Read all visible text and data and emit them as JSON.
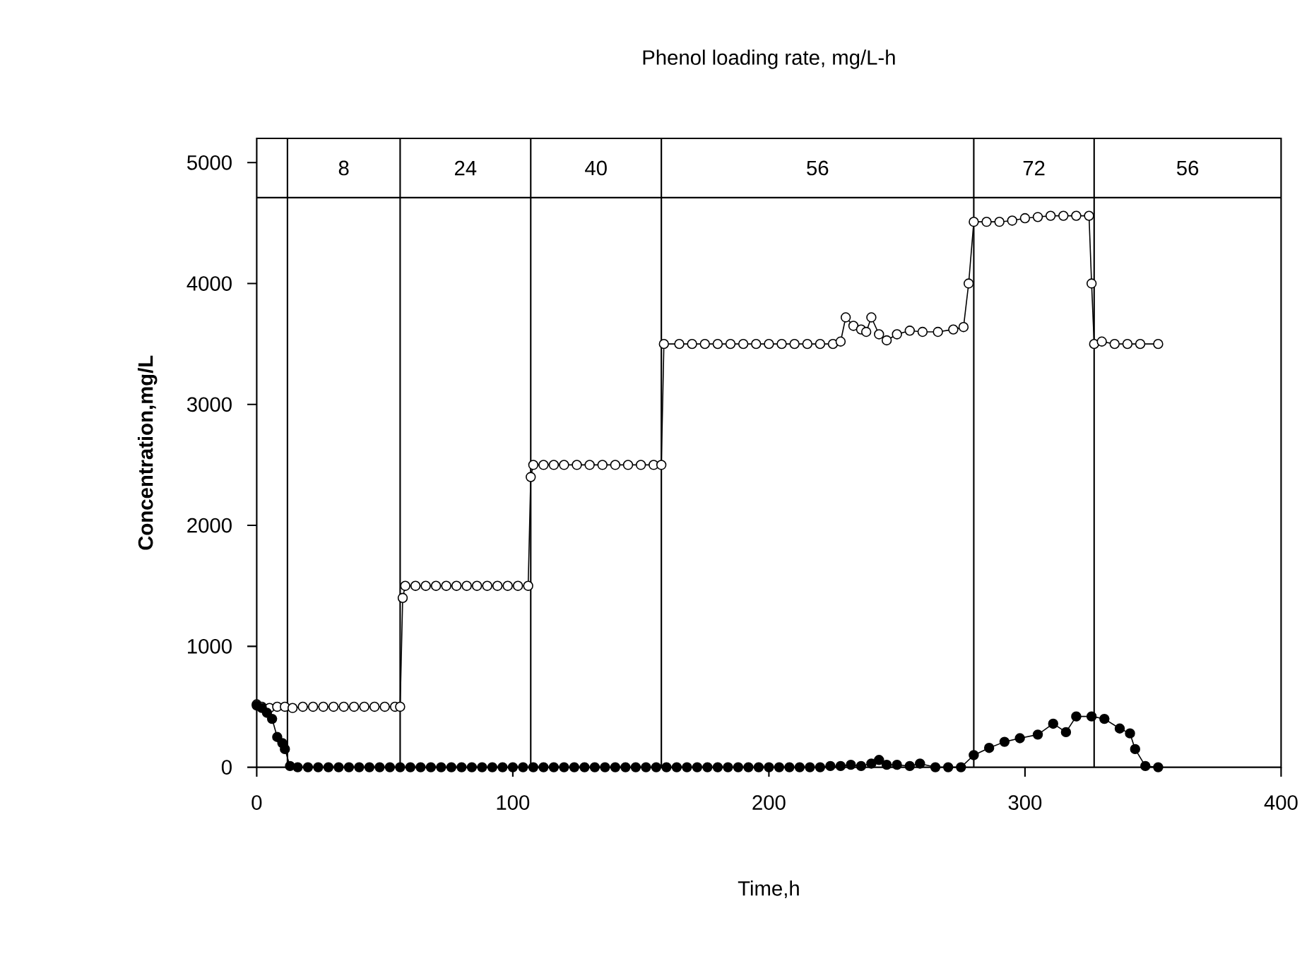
{
  "chart_data": {
    "type": "line",
    "title": "Phenol loading rate, mg/L-h",
    "xlabel": "Time,h",
    "ylabel": "Concentration,mg/L",
    "xlim": [
      0,
      400
    ],
    "xticks": [
      0,
      100,
      200,
      300,
      400
    ],
    "ylim": [
      0,
      5200
    ],
    "yticks": [
      0,
      1000,
      2000,
      3000,
      4000,
      5000
    ],
    "marker": "circle",
    "series": [
      {
        "color": "#000000",
        "x": [
          0,
          2,
          5,
          8,
          11,
          14,
          18,
          22,
          26,
          30,
          34,
          38,
          42,
          46,
          50,
          54,
          56,
          57,
          58,
          62,
          66,
          70,
          74,
          78,
          82,
          86,
          90,
          94,
          98,
          102,
          106,
          107,
          108,
          112,
          116,
          120,
          125,
          130,
          135,
          140,
          145,
          150,
          155,
          158,
          159,
          165,
          170,
          175,
          180,
          185,
          190,
          195,
          200,
          205,
          210,
          215,
          220,
          225,
          228,
          230,
          233,
          236,
          238,
          240,
          243,
          246,
          250,
          255,
          260,
          266,
          272,
          276,
          278,
          280,
          285,
          290,
          295,
          300,
          305,
          310,
          315,
          320,
          325,
          326,
          327,
          330,
          335,
          340,
          345,
          352
        ],
        "values": [
          520,
          500,
          490,
          500,
          500,
          490,
          500,
          500,
          500,
          500,
          500,
          500,
          500,
          500,
          500,
          500,
          500,
          1400,
          1500,
          1500,
          1500,
          1500,
          1500,
          1500,
          1500,
          1500,
          1500,
          1500,
          1500,
          1500,
          1500,
          2400,
          2500,
          2500,
          2500,
          2500,
          2500,
          2500,
          2500,
          2500,
          2500,
          2500,
          2500,
          2500,
          3500,
          3500,
          3500,
          3500,
          3500,
          3500,
          3500,
          3500,
          3500,
          3500,
          3500,
          3500,
          3500,
          3500,
          3520,
          3720,
          3650,
          3620,
          3600,
          3720,
          3580,
          3530,
          3580,
          3610,
          3600,
          3600,
          3620,
          3640,
          4000,
          4510,
          4510,
          4510,
          4520,
          4540,
          4550,
          4560,
          4560,
          4560,
          4560,
          4000,
          3500,
          3520,
          3500,
          3500,
          3500,
          3500
        ]
      },
      {
        "color": "#000000",
        "x": [
          0,
          2,
          4,
          6,
          8,
          10,
          11,
          13,
          16,
          20,
          24,
          28,
          32,
          36,
          40,
          44,
          48,
          52,
          56,
          60,
          64,
          68,
          72,
          76,
          80,
          84,
          88,
          92,
          96,
          100,
          104,
          108,
          112,
          116,
          120,
          124,
          128,
          132,
          136,
          140,
          144,
          148,
          152,
          156,
          160,
          164,
          168,
          172,
          176,
          180,
          184,
          188,
          192,
          196,
          200,
          204,
          208,
          212,
          216,
          220,
          224,
          228,
          232,
          236,
          240,
          243,
          246,
          250,
          255,
          259,
          265,
          270,
          275,
          280,
          286,
          292,
          298,
          305,
          311,
          316,
          320,
          326,
          331,
          337,
          341,
          343,
          347,
          352
        ],
        "values": [
          510,
          490,
          450,
          400,
          250,
          200,
          150,
          10,
          0,
          0,
          0,
          0,
          0,
          0,
          0,
          0,
          0,
          0,
          0,
          0,
          0,
          0,
          0,
          0,
          0,
          0,
          0,
          0,
          0,
          0,
          0,
          0,
          0,
          0,
          0,
          0,
          0,
          0,
          0,
          0,
          0,
          0,
          0,
          0,
          0,
          0,
          0,
          0,
          0,
          0,
          0,
          0,
          0,
          0,
          0,
          0,
          0,
          0,
          0,
          0,
          10,
          10,
          20,
          10,
          30,
          60,
          20,
          20,
          10,
          30,
          0,
          0,
          0,
          100,
          160,
          210,
          240,
          270,
          360,
          290,
          420,
          420,
          400,
          320,
          280,
          150,
          10,
          0
        ]
      }
    ],
    "ref_lines": [
      {
        "axis": "y",
        "value": 4710
      },
      {
        "axis": "x",
        "value": 12
      },
      {
        "axis": "x",
        "value": 56
      },
      {
        "axis": "x",
        "value": 107
      },
      {
        "axis": "x",
        "value": 158
      },
      {
        "axis": "x",
        "value": 280
      },
      {
        "axis": "x",
        "value": 327
      }
    ],
    "annotations": [
      "8",
      "24",
      "40",
      "56",
      "72",
      "56"
    ]
  }
}
